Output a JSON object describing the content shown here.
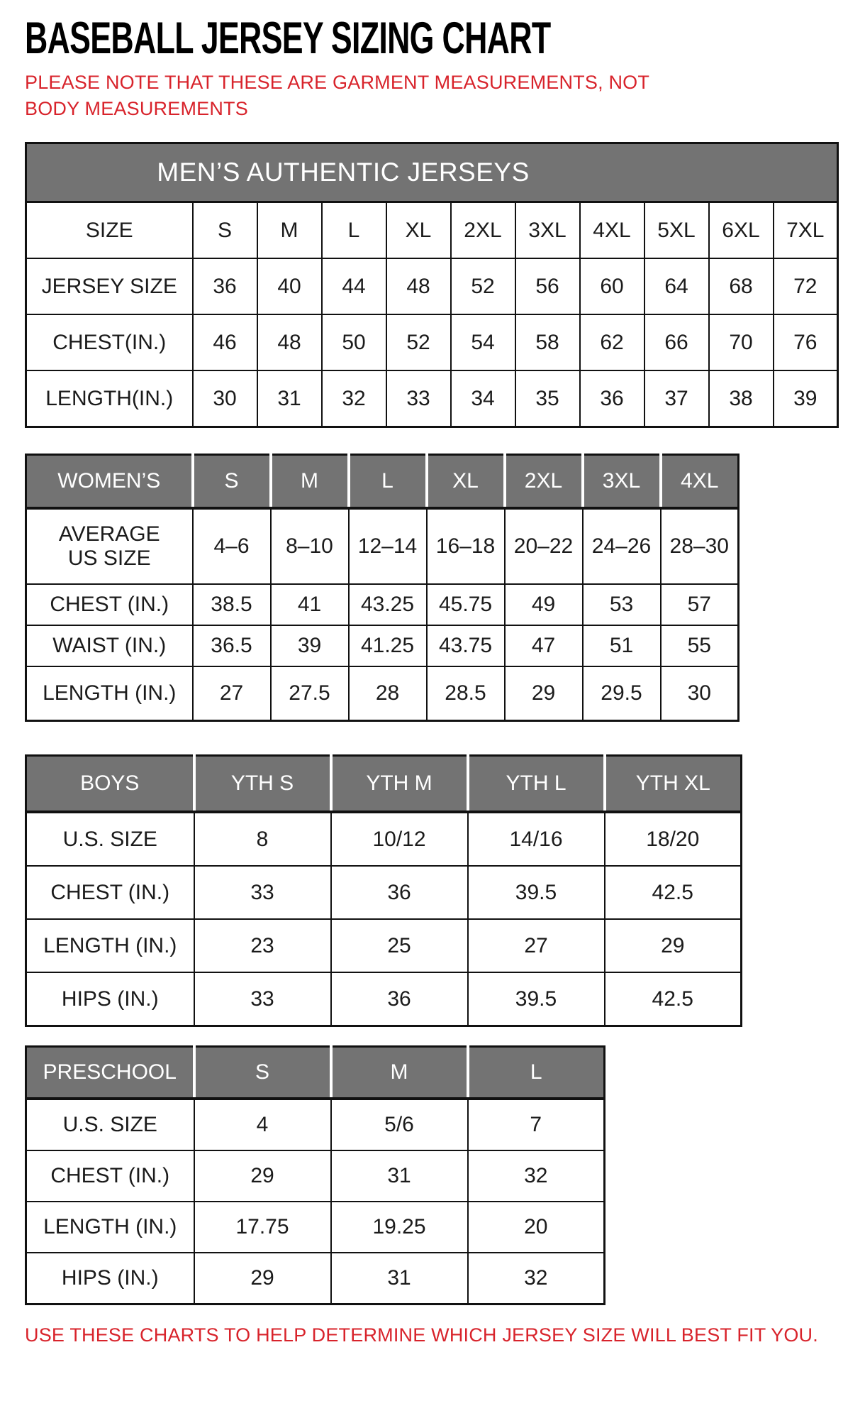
{
  "page": {
    "title": "BASEBALL JERSEY SIZING CHART",
    "note": "PLEASE NOTE THAT THESE ARE GARMENT MEASUREMENTS, NOT BODY MEASUREMENTS",
    "footer": "USE THESE CHARTS TO HELP DETERMINE WHICH JERSEY SIZE WILL BEST FIT YOU."
  },
  "colors": {
    "header_gray": "#737373",
    "accent_red": "#d8232b",
    "border_black": "#111111"
  },
  "tables": {
    "mens": {
      "banner": "MEN’S AUTHENTIC JERSEYS",
      "rows": [
        {
          "label": "SIZE",
          "values": [
            "S",
            "M",
            "L",
            "XL",
            "2XL",
            "3XL",
            "4XL",
            "5XL",
            "6XL",
            "7XL"
          ]
        },
        {
          "label": "JERSEY SIZE",
          "values": [
            "36",
            "40",
            "44",
            "48",
            "52",
            "56",
            "60",
            "64",
            "68",
            "72"
          ]
        },
        {
          "label": "CHEST(IN.)",
          "values": [
            "46",
            "48",
            "50",
            "52",
            "54",
            "58",
            "62",
            "66",
            "70",
            "76"
          ]
        },
        {
          "label": "LENGTH(IN.)",
          "values": [
            "30",
            "31",
            "32",
            "33",
            "34",
            "35",
            "36",
            "37",
            "38",
            "39"
          ]
        }
      ]
    },
    "womens": {
      "header": {
        "label": "WOMEN’S",
        "columns": [
          "S",
          "M",
          "L",
          "XL",
          "2XL",
          "3XL",
          "4XL"
        ]
      },
      "rows": [
        {
          "label": "AVERAGE\nUS SIZE",
          "values": [
            "4–6",
            "8–10",
            "12–14",
            "16–18",
            "20–22",
            "24–26",
            "28–30"
          ]
        },
        {
          "label": "CHEST (IN.)",
          "values": [
            "38.5",
            "41",
            "43.25",
            "45.75",
            "49",
            "53",
            "57"
          ]
        },
        {
          "label": "WAIST (IN.)",
          "values": [
            "36.5",
            "39",
            "41.25",
            "43.75",
            "47",
            "51",
            "55"
          ]
        },
        {
          "label": "LENGTH (IN.)",
          "values": [
            "27",
            "27.5",
            "28",
            "28.5",
            "29",
            "29.5",
            "30"
          ]
        }
      ]
    },
    "boys": {
      "header": {
        "label": "BOYS",
        "columns": [
          "YTH S",
          "YTH M",
          "YTH L",
          "YTH XL"
        ]
      },
      "rows": [
        {
          "label": "U.S. SIZE",
          "values": [
            "8",
            "10/12",
            "14/16",
            "18/20"
          ]
        },
        {
          "label": "CHEST (IN.)",
          "values": [
            "33",
            "36",
            "39.5",
            "42.5"
          ]
        },
        {
          "label": "LENGTH (IN.)",
          "values": [
            "23",
            "25",
            "27",
            "29"
          ]
        },
        {
          "label": "HIPS (IN.)",
          "values": [
            "33",
            "36",
            "39.5",
            "42.5"
          ]
        }
      ]
    },
    "preschool": {
      "header": {
        "label": "PRESCHOOL",
        "columns": [
          "S",
          "M",
          "L"
        ]
      },
      "rows": [
        {
          "label": "U.S. SIZE",
          "values": [
            "4",
            "5/6",
            "7"
          ]
        },
        {
          "label": "CHEST (IN.)",
          "values": [
            "29",
            "31",
            "32"
          ]
        },
        {
          "label": "LENGTH (IN.)",
          "values": [
            "17.75",
            "19.25",
            "20"
          ]
        },
        {
          "label": "HIPS (IN.)",
          "values": [
            "29",
            "31",
            "32"
          ]
        }
      ]
    }
  }
}
